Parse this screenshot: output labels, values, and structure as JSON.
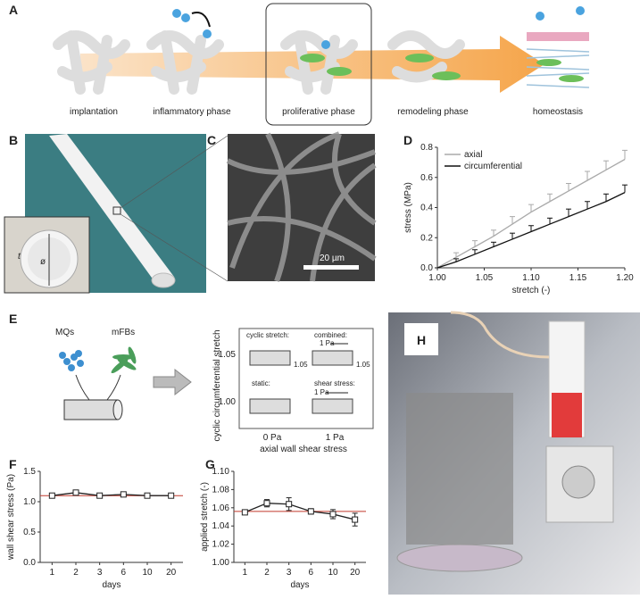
{
  "panel_a": {
    "label": "A",
    "stages": [
      "implantation",
      "inflammatory phase",
      "proliferative phase",
      "remodeling phase",
      "homeostasis"
    ]
  },
  "panel_b": {
    "label": "B",
    "thickness": "t",
    "diameter": "ø"
  },
  "panel_c": {
    "label": "C",
    "scale_bar": "20 µm"
  },
  "panel_d": {
    "label": "D"
  },
  "panel_e": {
    "label": "E",
    "cells": [
      "MQs",
      "mFBs"
    ],
    "y_label": "cyclic circumferential stretch",
    "x_label": "axial wall shear stress",
    "y_ticks": [
      "1.05",
      "1.00"
    ],
    "x_ticks": [
      "0 Pa",
      "1 Pa"
    ],
    "conditions": [
      "cyclic stretch:",
      "combined:",
      "static:",
      "shear stress:"
    ],
    "stretch_note": "1.05",
    "shear_note": "1 Pa"
  },
  "panel_f": {
    "label": "F"
  },
  "panel_g": {
    "label": "G"
  },
  "panel_h": {
    "label": "H"
  },
  "chart_data": [
    {
      "type": "line",
      "x_label": "stretch (-)",
      "y_label": "stress (MPa)",
      "x": [
        1.0,
        1.02,
        1.04,
        1.06,
        1.08,
        1.1,
        1.12,
        1.14,
        1.16,
        1.18,
        1.2
      ],
      "series": [
        {
          "name": "axial",
          "color": "#aaaaaa",
          "values": [
            0,
            0.07,
            0.14,
            0.21,
            0.29,
            0.37,
            0.44,
            0.51,
            0.58,
            0.65,
            0.72
          ],
          "errors": [
            0,
            0.03,
            0.04,
            0.04,
            0.05,
            0.05,
            0.05,
            0.05,
            0.06,
            0.06,
            0.06
          ]
        },
        {
          "name": "circumferential",
          "color": "#111111",
          "values": [
            0,
            0.04,
            0.09,
            0.14,
            0.19,
            0.24,
            0.29,
            0.34,
            0.39,
            0.44,
            0.5
          ],
          "errors": [
            0,
            0.02,
            0.03,
            0.03,
            0.04,
            0.04,
            0.04,
            0.05,
            0.05,
            0.05,
            0.05
          ]
        }
      ],
      "xlim": [
        1.0,
        1.2
      ],
      "xticks": [
        {
          "value": 1.0,
          "label": "1.00"
        },
        {
          "value": 1.05,
          "label": "1.05"
        },
        {
          "value": 1.1,
          "label": "1.10"
        },
        {
          "value": 1.15,
          "label": "1.15"
        },
        {
          "value": 1.2,
          "label": "1.20"
        }
      ],
      "ylim": [
        0,
        0.8
      ],
      "yticks": [
        {
          "value": 0,
          "label": "0.0"
        },
        0.2,
        0.4,
        0.6,
        0.8
      ],
      "legend": "top-left"
    },
    {
      "type": "line",
      "x_label": "days",
      "y_label": "wall shear stress (Pa)",
      "categories": [
        "1",
        "2",
        "3",
        "6",
        "10",
        "20"
      ],
      "values": [
        1.1,
        1.15,
        1.1,
        1.12,
        1.1,
        1.1
      ],
      "errors": [
        0.02,
        0.03,
        0.02,
        0.04,
        0.02,
        0.03
      ],
      "color": "#222222",
      "reference": 1.1,
      "reference_color": "#c0392b",
      "ylim": [
        0,
        1.5
      ],
      "yticks": [
        {
          "value": 0,
          "label": "0.0"
        },
        0.5,
        {
          "value": 1,
          "label": "1.0"
        },
        1.5
      ]
    },
    {
      "type": "line",
      "x_label": "days",
      "y_label": "applied stretch (-)",
      "categories": [
        "1",
        "2",
        "3",
        "6",
        "10",
        "20"
      ],
      "values": [
        1.055,
        1.065,
        1.064,
        1.056,
        1.053,
        1.047
      ],
      "errors": [
        0.002,
        0.004,
        0.007,
        0.003,
        0.005,
        0.007
      ],
      "color": "#222222",
      "reference": 1.056,
      "reference_color": "#c0392b",
      "ylim": [
        1.0,
        1.1
      ],
      "yticks": [
        {
          "value": 1.0,
          "label": "1.00"
        },
        1.02,
        1.04,
        1.06,
        1.08,
        {
          "value": 1.1,
          "label": "1.10"
        }
      ]
    }
  ]
}
